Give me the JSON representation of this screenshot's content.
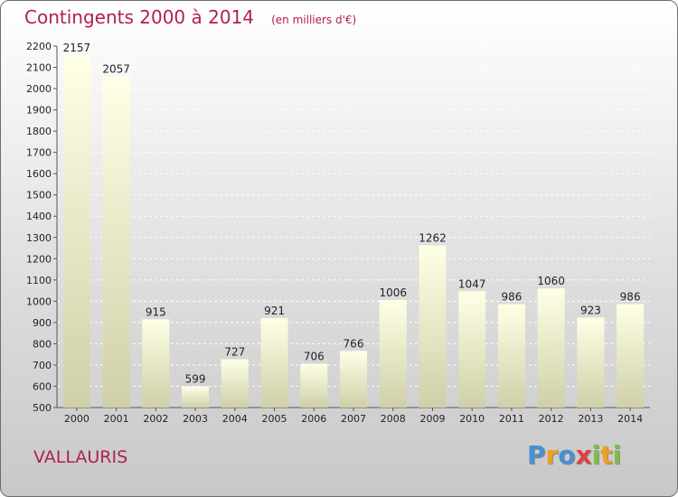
{
  "title": "Contingents 2000 à 2014",
  "subtitle": "(en milliers d'€)",
  "commune": "VALLAURIS",
  "logo": {
    "letters": [
      {
        "ch": "P",
        "color": "#4a8fd4"
      },
      {
        "ch": "r",
        "color": "#f0a020"
      },
      {
        "ch": "o",
        "color": "#4a8fd4"
      },
      {
        "ch": "x",
        "color": "#e04040"
      },
      {
        "ch": "i",
        "color": "#7cc040"
      },
      {
        "ch": "t",
        "color": "#f0a020"
      },
      {
        "ch": "i",
        "color": "#7cc040"
      }
    ]
  },
  "colors": {
    "accent": "#b1214a",
    "bar_top": "#ffffe6",
    "bar_bottom": "#cfd0a8"
  },
  "chart_data": {
    "type": "bar",
    "categories": [
      "2000",
      "2001",
      "2002",
      "2003",
      "2004",
      "2005",
      "2006",
      "2007",
      "2008",
      "2009",
      "2010",
      "2011",
      "2012",
      "2013",
      "2014"
    ],
    "values": [
      2157,
      2057,
      915,
      599,
      727,
      921,
      706,
      766,
      1006,
      1262,
      1047,
      986,
      1060,
      923,
      986
    ],
    "ylim": [
      500,
      2200
    ],
    "yticks": [
      500,
      600,
      700,
      800,
      900,
      1000,
      1100,
      1200,
      1300,
      1400,
      1500,
      1600,
      1700,
      1800,
      1900,
      2000,
      2100,
      2200
    ],
    "grid": true,
    "title": "Contingents 2000 à 2014",
    "xlabel": "",
    "ylabel": ""
  }
}
